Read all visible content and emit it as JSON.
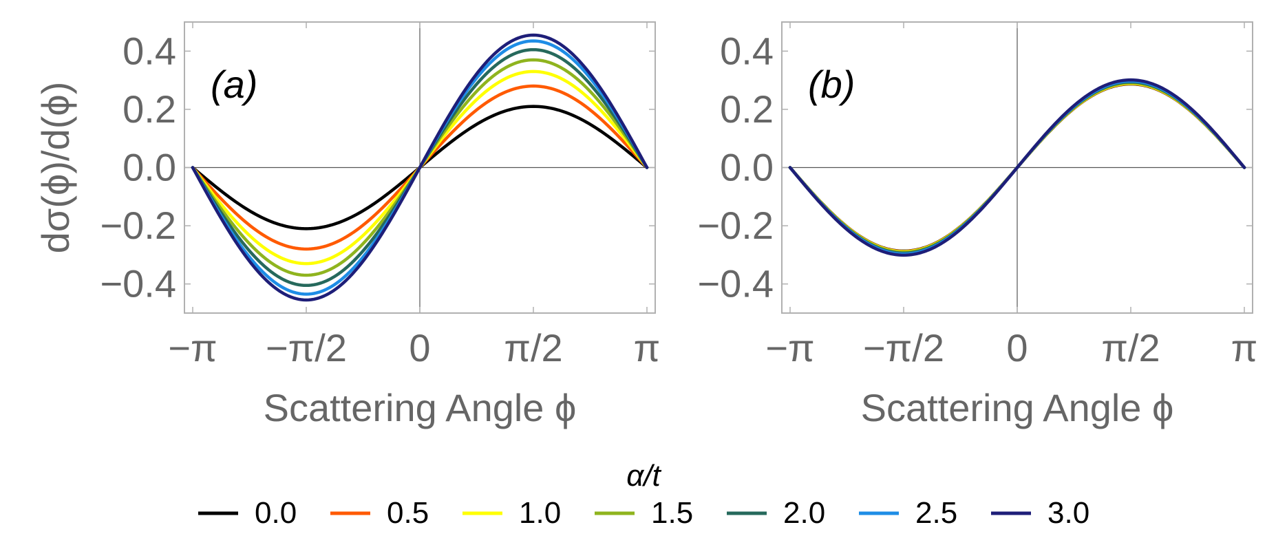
{
  "chart_data": [
    {
      "type": "line",
      "panel_label": "(a)",
      "xlabel": "Scattering Angle ϕ",
      "ylabel": "dσ(ϕ)/d(ϕ)",
      "xlim": [
        -3.14159,
        3.14159
      ],
      "ylim": [
        -0.5,
        0.5
      ],
      "x_ticks": [
        {
          "value": -3.14159,
          "label": "−π"
        },
        {
          "value": -1.5708,
          "label": "−π/2"
        },
        {
          "value": 0,
          "label": "0"
        },
        {
          "value": 1.5708,
          "label": "π/2"
        },
        {
          "value": 3.14159,
          "label": "π"
        }
      ],
      "y_ticks": [
        {
          "value": 0.4,
          "label": "0.4"
        },
        {
          "value": 0.2,
          "label": "0.2"
        },
        {
          "value": 0.0,
          "label": "0.0"
        },
        {
          "value": -0.2,
          "label": "−0.2"
        },
        {
          "value": -0.4,
          "label": "−0.4"
        }
      ],
      "curve": "A * sin(phi)",
      "series": [
        {
          "name": "0.0",
          "color": "#000000",
          "amplitude": 0.21
        },
        {
          "name": "0.5",
          "color": "#ff5a00",
          "amplitude": 0.28
        },
        {
          "name": "1.0",
          "color": "#ffff00",
          "amplitude": 0.33
        },
        {
          "name": "1.5",
          "color": "#8fb41e",
          "amplitude": 0.37
        },
        {
          "name": "2.0",
          "color": "#26695c",
          "amplitude": 0.405
        },
        {
          "name": "2.5",
          "color": "#1e8de6",
          "amplitude": 0.435
        },
        {
          "name": "3.0",
          "color": "#1e1e78",
          "amplitude": 0.455
        }
      ]
    },
    {
      "type": "line",
      "panel_label": "(b)",
      "xlabel": "Scattering Angle ϕ",
      "ylabel": "",
      "xlim": [
        -3.14159,
        3.14159
      ],
      "ylim": [
        -0.5,
        0.5
      ],
      "x_ticks": [
        {
          "value": -3.14159,
          "label": "−π"
        },
        {
          "value": -1.5708,
          "label": "−π/2"
        },
        {
          "value": 0,
          "label": "0"
        },
        {
          "value": 1.5708,
          "label": "π/2"
        },
        {
          "value": 3.14159,
          "label": "π"
        }
      ],
      "y_ticks": [
        {
          "value": 0.4,
          "label": "0.4"
        },
        {
          "value": 0.2,
          "label": "0.2"
        },
        {
          "value": 0.0,
          "label": "0.0"
        },
        {
          "value": -0.2,
          "label": "−0.2"
        },
        {
          "value": -0.4,
          "label": "−0.4"
        }
      ],
      "curve": "A * sin(phi)",
      "series": [
        {
          "name": "0.0",
          "color": "#000000",
          "amplitude": 0.287
        },
        {
          "name": "0.5",
          "color": "#ff5a00",
          "amplitude": 0.288
        },
        {
          "name": "1.0",
          "color": "#ffff00",
          "amplitude": 0.289
        },
        {
          "name": "1.5",
          "color": "#8fb41e",
          "amplitude": 0.291
        },
        {
          "name": "2.0",
          "color": "#26695c",
          "amplitude": 0.294
        },
        {
          "name": "2.5",
          "color": "#1e8de6",
          "amplitude": 0.297
        },
        {
          "name": "3.0",
          "color": "#1e1e78",
          "amplitude": 0.301
        }
      ]
    }
  ],
  "legend": {
    "title": "α/t",
    "placement": "bottom",
    "entries": [
      {
        "label": "0.0",
        "color": "#000000"
      },
      {
        "label": "0.5",
        "color": "#ff5a00"
      },
      {
        "label": "1.0",
        "color": "#ffff00"
      },
      {
        "label": "1.5",
        "color": "#8fb41e"
      },
      {
        "label": "2.0",
        "color": "#26695c"
      },
      {
        "label": "2.5",
        "color": "#1e8de6"
      },
      {
        "label": "3.0",
        "color": "#1e1e78"
      }
    ]
  }
}
